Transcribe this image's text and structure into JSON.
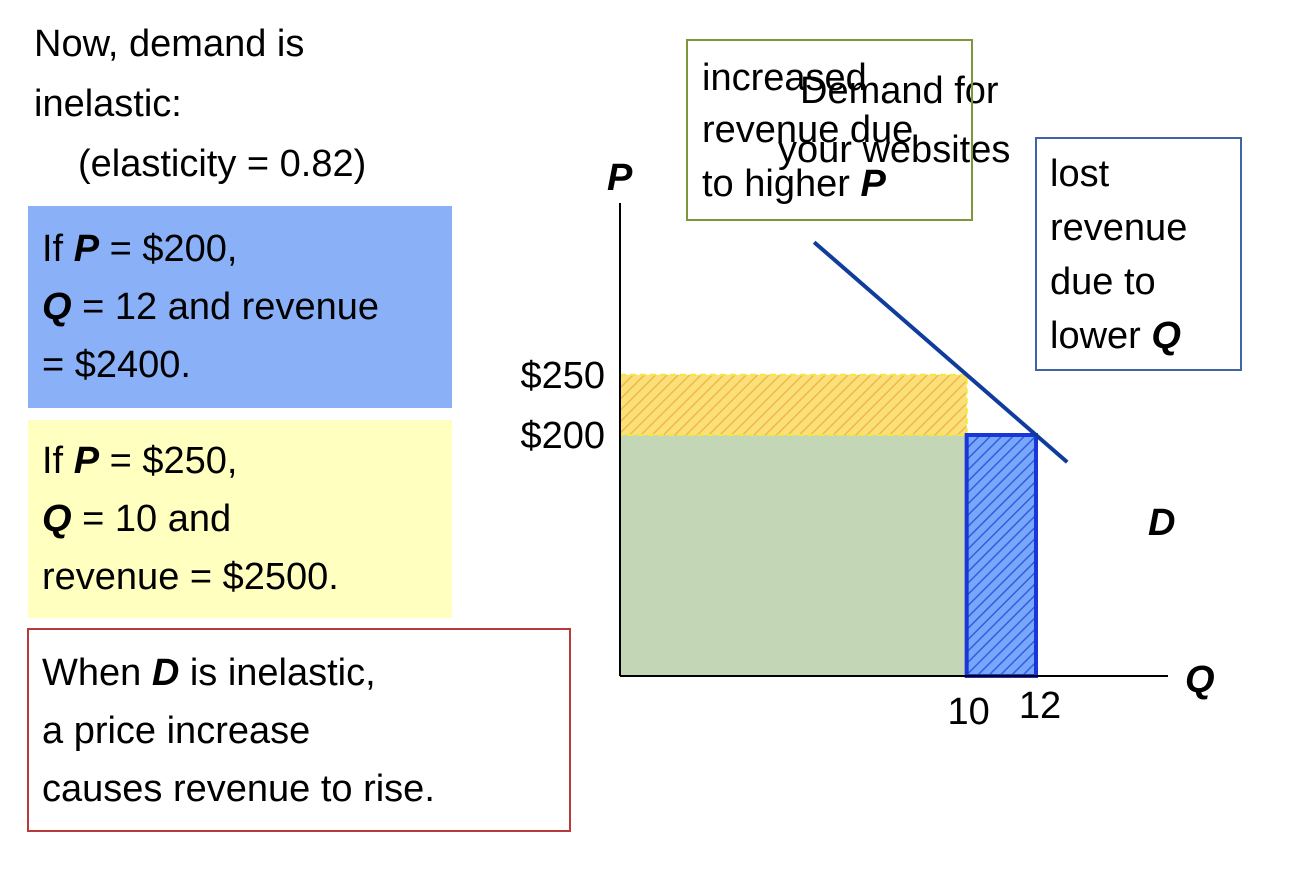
{
  "intro": {
    "line1": "Now, demand is",
    "line2": "inelastic:",
    "line3": "(elasticity = 0.82)"
  },
  "box_200": {
    "l1_a": "If ",
    "l1_var": "P",
    "l1_b": " = $200,",
    "l2_var": "Q",
    "l2_b": " = 12 and revenue",
    "l3": "= $2400.",
    "color": "#8ab1f7"
  },
  "box_250": {
    "l1_a": "If ",
    "l1_var": "P",
    "l1_b": " = $250,",
    "l2_var": "Q",
    "l2_b": " = 10 and",
    "l3": "revenue = $2500.",
    "color": "#ffffc0"
  },
  "conclusion": {
    "l1_a": "When ",
    "l1_var": "D",
    "l1_b": " is inelastic,",
    "l2": "a price increase",
    "l3": "causes revenue to rise.",
    "border": "#b83a3a"
  },
  "chart_data": {
    "type": "area",
    "title": "Demand for your websites",
    "xlabel": "Q",
    "ylabel": "P",
    "x_ticks": [
      10,
      12
    ],
    "x_tick_labels": [
      "10",
      "12"
    ],
    "y_ticks": [
      200,
      250
    ],
    "y_tick_labels": [
      "$200",
      "$250"
    ],
    "demand_label": "D",
    "demand_points": [
      {
        "x": 10,
        "y": 250
      },
      {
        "x": 12,
        "y": 200
      }
    ],
    "regions": [
      {
        "x": [
          0,
          10
        ],
        "y": [
          0,
          200
        ],
        "color": "#c3d7b6"
      },
      {
        "x": [
          0,
          10
        ],
        "y": [
          200,
          250
        ],
        "color": "#fbdc6a",
        "label": "increased revenue due to higher P"
      },
      {
        "x": [
          10,
          12
        ],
        "y": [
          0,
          200
        ],
        "color": "#5b8ff5",
        "label": "lost revenue due to lower Q"
      }
    ],
    "annotations": {
      "increased_l1": "increased",
      "increased_l2": "revenue due",
      "increased_l3a": "to higher ",
      "increased_var": "P",
      "lost_l1": "lost",
      "lost_l2": "revenue",
      "lost_l3": "due to",
      "lost_l4a": "lower ",
      "lost_var": "Q"
    },
    "demand_color": "#103c9c"
  }
}
